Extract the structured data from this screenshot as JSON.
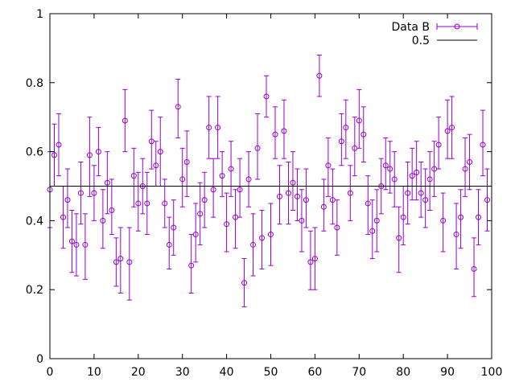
{
  "chart_data": {
    "type": "scatter",
    "title": "",
    "xlabel": "",
    "ylabel": "",
    "xlim": [
      0,
      100
    ],
    "ylim": [
      0,
      1
    ],
    "x_ticks": [
      0,
      10,
      20,
      30,
      40,
      50,
      60,
      70,
      80,
      90,
      100
    ],
    "y_ticks": [
      0,
      0.2,
      0.4,
      0.6,
      0.8,
      1
    ],
    "x_tick_labels": [
      "0",
      "10",
      "20",
      "30",
      "40",
      "50",
      "60",
      "70",
      "80",
      "90",
      "100"
    ],
    "y_tick_labels": [
      "0",
      "0.2",
      "0.4",
      "0.6",
      "0.8",
      "1"
    ],
    "grid": false,
    "legend_position": "top-right",
    "series": [
      {
        "name": "Data B",
        "style": "points with error bars",
        "color": "#9400d3",
        "x": [
          0,
          1,
          2,
          3,
          4,
          5,
          6,
          7,
          8,
          9,
          10,
          11,
          12,
          13,
          14,
          15,
          16,
          17,
          18,
          19,
          20,
          21,
          22,
          23,
          24,
          25,
          26,
          27,
          28,
          29,
          30,
          31,
          32,
          33,
          34,
          35,
          36,
          37,
          38,
          39,
          40,
          41,
          42,
          43,
          44,
          45,
          46,
          47,
          48,
          49,
          50,
          51,
          52,
          53,
          54,
          55,
          56,
          57,
          58,
          59,
          60,
          61,
          62,
          63,
          64,
          65,
          66,
          67,
          68,
          69,
          70,
          71,
          72,
          73,
          74,
          75,
          76,
          77,
          78,
          79,
          80,
          81,
          82,
          83,
          84,
          85,
          86,
          87,
          88,
          89,
          90,
          91,
          92,
          93,
          94,
          95,
          96,
          97,
          98,
          99
        ],
        "y": [
          0.49,
          0.59,
          0.62,
          0.41,
          0.46,
          0.34,
          0.33,
          0.48,
          0.33,
          0.59,
          0.48,
          0.6,
          0.4,
          0.51,
          0.43,
          0.28,
          0.29,
          0.69,
          0.28,
          0.53,
          0.45,
          0.5,
          0.45,
          0.63,
          0.56,
          0.6,
          0.45,
          0.33,
          0.38,
          0.73,
          0.52,
          0.57,
          0.27,
          0.36,
          0.42,
          0.46,
          0.67,
          0.49,
          0.67,
          0.53,
          0.39,
          0.55,
          0.41,
          0.49,
          0.22,
          0.52,
          0.33,
          0.61,
          0.35,
          0.76,
          0.36,
          0.65,
          0.47,
          0.66,
          0.48,
          0.51,
          0.47,
          0.4,
          0.46,
          0.28,
          0.29,
          0.82,
          0.44,
          0.56,
          0.46,
          0.38,
          0.63,
          0.67,
          0.48,
          0.61,
          0.69,
          0.65,
          0.45,
          0.37,
          0.4,
          0.5,
          0.56,
          0.55,
          0.52,
          0.35,
          0.41,
          0.48,
          0.53,
          0.54,
          0.48,
          0.46,
          0.52,
          0.55,
          0.62,
          0.4,
          0.66,
          0.67,
          0.36,
          0.41,
          0.55,
          0.57,
          0.26,
          0.41,
          0.62,
          0.46
        ],
        "y_low": [
          0.38,
          0.5,
          0.53,
          0.32,
          0.38,
          0.25,
          0.24,
          0.39,
          0.23,
          0.47,
          0.4,
          0.53,
          0.32,
          0.42,
          0.36,
          0.21,
          0.19,
          0.6,
          0.17,
          0.44,
          0.37,
          0.42,
          0.36,
          0.55,
          0.5,
          0.5,
          0.38,
          0.26,
          0.3,
          0.64,
          0.44,
          0.47,
          0.19,
          0.28,
          0.33,
          0.38,
          0.58,
          0.41,
          0.58,
          0.47,
          0.31,
          0.47,
          0.32,
          0.41,
          0.15,
          0.44,
          0.24,
          0.52,
          0.26,
          0.7,
          0.27,
          0.58,
          0.39,
          0.58,
          0.39,
          0.43,
          0.4,
          0.31,
          0.38,
          0.2,
          0.2,
          0.76,
          0.37,
          0.47,
          0.39,
          0.3,
          0.56,
          0.58,
          0.4,
          0.53,
          0.61,
          0.57,
          0.36,
          0.29,
          0.31,
          0.42,
          0.49,
          0.48,
          0.44,
          0.25,
          0.33,
          0.39,
          0.46,
          0.46,
          0.41,
          0.38,
          0.43,
          0.47,
          0.55,
          0.31,
          0.58,
          0.58,
          0.26,
          0.32,
          0.47,
          0.49,
          0.18,
          0.33,
          0.53,
          0.37
        ],
        "y_high": [
          0.6,
          0.68,
          0.71,
          0.5,
          0.55,
          0.43,
          0.42,
          0.57,
          0.42,
          0.7,
          0.56,
          0.67,
          0.49,
          0.6,
          0.52,
          0.35,
          0.38,
          0.78,
          0.38,
          0.61,
          0.54,
          0.58,
          0.54,
          0.72,
          0.63,
          0.7,
          0.52,
          0.41,
          0.46,
          0.81,
          0.61,
          0.66,
          0.36,
          0.45,
          0.51,
          0.54,
          0.76,
          0.58,
          0.76,
          0.6,
          0.48,
          0.63,
          0.49,
          0.58,
          0.29,
          0.6,
          0.42,
          0.71,
          0.43,
          0.82,
          0.45,
          0.73,
          0.56,
          0.75,
          0.57,
          0.6,
          0.55,
          0.49,
          0.55,
          0.37,
          0.38,
          0.88,
          0.52,
          0.64,
          0.55,
          0.46,
          0.71,
          0.75,
          0.56,
          0.7,
          0.78,
          0.73,
          0.53,
          0.46,
          0.49,
          0.58,
          0.64,
          0.63,
          0.6,
          0.44,
          0.5,
          0.57,
          0.61,
          0.63,
          0.57,
          0.55,
          0.6,
          0.63,
          0.7,
          0.48,
          0.75,
          0.76,
          0.45,
          0.49,
          0.64,
          0.65,
          0.35,
          0.49,
          0.72,
          0.55
        ]
      },
      {
        "name": "0.5",
        "style": "line",
        "color": "#000000",
        "y_constant": 0.5
      }
    ]
  }
}
